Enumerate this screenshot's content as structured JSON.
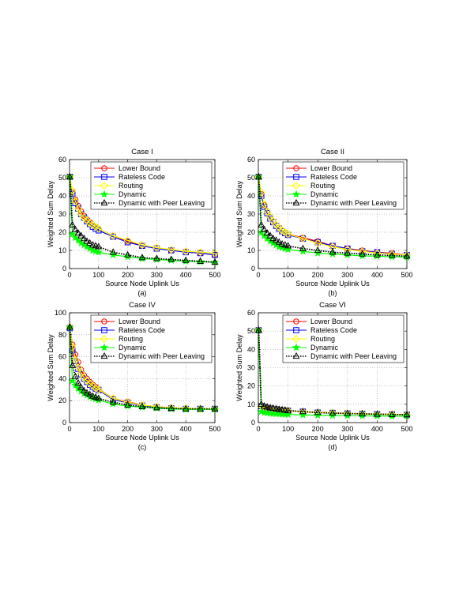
{
  "legend_labels": [
    "Lower Bound",
    "Rateless Code",
    "Routing",
    "Dynamic",
    "Dynamic with Peer Leaving"
  ],
  "series_styles": [
    {
      "color": "#ff0000",
      "marker": "circle"
    },
    {
      "color": "#0000ff",
      "marker": "square"
    },
    {
      "color": "#ffff00",
      "marker": "diamond"
    },
    {
      "color": "#00ff00",
      "marker": "star"
    },
    {
      "color": "#000000",
      "marker": "triangle",
      "line": "dotted"
    }
  ],
  "chart_data": [
    {
      "type": "line",
      "title": "Case I",
      "xlabel": "Source Node Uplink Us",
      "ylabel": "Weighted Sum Delay",
      "caption": "(a)",
      "xlim": [
        0,
        500
      ],
      "ylim": [
        0,
        60
      ],
      "xticks": [
        0,
        100,
        200,
        300,
        400,
        500
      ],
      "yticks": [
        0,
        10,
        20,
        30,
        40,
        50,
        60
      ],
      "grid": true,
      "legend_position": "top-right",
      "series": [
        {
          "name": "Lower Bound",
          "x": [
            1,
            10,
            20,
            30,
            40,
            50,
            60,
            70,
            80,
            90,
            100,
            150,
            200,
            250,
            300,
            350,
            400,
            450,
            500
          ],
          "y": [
            50.5,
            42,
            38,
            34.5,
            31.5,
            29,
            27,
            25.5,
            24,
            23,
            22,
            18,
            15,
            12.5,
            11.5,
            10,
            9.5,
            8.5,
            7.5
          ]
        },
        {
          "name": "Rateless Code",
          "x": [
            1,
            10,
            20,
            30,
            40,
            50,
            60,
            70,
            80,
            90,
            100,
            150,
            200,
            250,
            300,
            350,
            400,
            450,
            500
          ],
          "y": [
            50.5,
            41,
            36,
            33,
            30,
            28,
            26,
            24.5,
            23,
            22,
            21,
            17.5,
            14.5,
            12.5,
            11,
            10,
            9,
            8.5,
            7.5
          ]
        },
        {
          "name": "Routing",
          "x": [
            1,
            10,
            20,
            30,
            40,
            50,
            60,
            70,
            80,
            90,
            100,
            150,
            200,
            250,
            300,
            350,
            400,
            450,
            500
          ],
          "y": [
            50.5,
            43,
            37,
            33,
            30,
            28,
            26.5,
            25,
            24,
            23,
            22,
            18,
            15.5,
            13,
            11.5,
            10.5,
            9.5,
            9,
            8.5
          ]
        },
        {
          "name": "Dynamic",
          "x": [
            1,
            10,
            20,
            30,
            40,
            50,
            60,
            70,
            80,
            90,
            100,
            150,
            200,
            250,
            300,
            350,
            400,
            450,
            500
          ],
          "y": [
            50.5,
            19,
            17,
            15.5,
            14,
            13,
            12,
            11,
            10,
            9.5,
            9,
            7.5,
            6.5,
            5.5,
            5,
            4.5,
            4,
            3.7,
            3.5
          ]
        },
        {
          "name": "Dynamic with Peer Leaving",
          "x": [
            1,
            10,
            20,
            30,
            40,
            50,
            60,
            70,
            80,
            90,
            100,
            150,
            200,
            250,
            300,
            350,
            400,
            450,
            500
          ],
          "y": [
            50.5,
            24,
            21.5,
            19.5,
            18,
            16.5,
            15,
            14,
            13,
            12.5,
            12,
            9,
            7.5,
            6,
            5.5,
            5,
            4.5,
            4,
            3.5
          ]
        }
      ]
    },
    {
      "type": "line",
      "title": "Case II",
      "xlabel": "Source Node Uplink Us",
      "ylabel": "Weighted Sum Delay",
      "caption": "(b)",
      "xlim": [
        0,
        500
      ],
      "ylim": [
        0,
        60
      ],
      "xticks": [
        0,
        100,
        200,
        300,
        400,
        500
      ],
      "yticks": [
        0,
        10,
        20,
        30,
        40,
        50,
        60
      ],
      "grid": true,
      "legend_position": "top-right",
      "series": [
        {
          "name": "Lower Bound",
          "x": [
            1,
            10,
            20,
            30,
            40,
            50,
            60,
            70,
            80,
            90,
            100,
            150,
            200,
            250,
            300,
            350,
            400,
            450,
            500
          ],
          "y": [
            50.5,
            41,
            35,
            31.5,
            28.5,
            26,
            24,
            22.5,
            21,
            20,
            19,
            17,
            15,
            12.5,
            11,
            10,
            9,
            8.5,
            7.5
          ]
        },
        {
          "name": "Rateless Code",
          "x": [
            1,
            10,
            20,
            30,
            40,
            50,
            60,
            70,
            80,
            90,
            100,
            150,
            200,
            250,
            300,
            350,
            400,
            450,
            500
          ],
          "y": [
            50.5,
            40,
            34,
            30.5,
            27.5,
            25.5,
            23.5,
            22,
            20.5,
            19.5,
            18.5,
            16.5,
            14.5,
            12.5,
            11,
            9.5,
            9,
            8,
            7.5
          ]
        },
        {
          "name": "Routing",
          "x": [
            1,
            10,
            20,
            30,
            40,
            50,
            60,
            70,
            80,
            90,
            100,
            150,
            200,
            250,
            300,
            350,
            400,
            450,
            500
          ],
          "y": [
            50.5,
            42,
            35.5,
            31.5,
            28.5,
            26,
            24,
            22.5,
            21,
            20,
            19,
            16.5,
            14,
            12,
            10.5,
            9.5,
            8.5,
            8,
            7.5
          ]
        },
        {
          "name": "Dynamic",
          "x": [
            1,
            10,
            20,
            30,
            40,
            50,
            60,
            70,
            80,
            90,
            100,
            150,
            200,
            250,
            300,
            350,
            400,
            450,
            500
          ],
          "y": [
            50.5,
            20,
            18,
            16.5,
            15,
            14,
            13,
            12,
            11.5,
            11,
            10.5,
            9.5,
            8.5,
            8,
            7.5,
            7,
            6.8,
            6.5,
            6.3
          ]
        },
        {
          "name": "Dynamic with Peer Leaving",
          "x": [
            1,
            10,
            20,
            30,
            40,
            50,
            60,
            70,
            80,
            90,
            100,
            150,
            200,
            250,
            300,
            350,
            400,
            450,
            500
          ],
          "y": [
            50.5,
            24,
            21.5,
            19.5,
            18,
            16.5,
            15.5,
            14.5,
            13.5,
            13,
            12.5,
            11,
            10,
            9,
            8.5,
            8,
            7.5,
            7.2,
            6.8
          ]
        }
      ]
    },
    {
      "type": "line",
      "title": "Case IV",
      "xlabel": "Source Node Uplink Us",
      "ylabel": "Weighted Sum Delay",
      "caption": "(c)",
      "xlim": [
        0,
        500
      ],
      "ylim": [
        0,
        100
      ],
      "xticks": [
        0,
        100,
        200,
        300,
        400,
        500
      ],
      "yticks": [
        0,
        20,
        40,
        60,
        80,
        100
      ],
      "grid": true,
      "legend_position": "top-right",
      "series": [
        {
          "name": "Lower Bound",
          "x": [
            1,
            10,
            20,
            30,
            40,
            50,
            60,
            70,
            80,
            90,
            100,
            150,
            200,
            250,
            300,
            350,
            400,
            450,
            500
          ],
          "y": [
            87,
            71,
            62,
            55,
            48,
            43,
            40,
            37,
            34.5,
            32.5,
            30.5,
            22,
            19,
            16,
            14.5,
            13.5,
            13,
            12.5,
            12.5
          ]
        },
        {
          "name": "Rateless Code",
          "x": [
            1,
            10,
            20,
            30,
            40,
            50,
            60,
            70,
            80,
            90,
            100,
            150,
            200,
            250,
            300,
            350,
            400,
            450,
            500
          ],
          "y": [
            86,
            66,
            56,
            49,
            44,
            40,
            37,
            34.5,
            32.5,
            31,
            29.5,
            21,
            18,
            15.5,
            14,
            13,
            12.5,
            12.5,
            12.5
          ]
        },
        {
          "name": "Routing",
          "x": [
            1,
            10,
            20,
            30,
            40,
            50,
            60,
            70,
            80,
            90,
            100,
            150,
            200,
            250,
            300,
            350,
            400,
            450,
            500
          ],
          "y": [
            87,
            69,
            57,
            50,
            45,
            41,
            38,
            35.5,
            33.5,
            31.5,
            30,
            22,
            18.5,
            16,
            14.5,
            13.5,
            13,
            12.5,
            12.5
          ]
        },
        {
          "name": "Dynamic",
          "x": [
            1,
            10,
            20,
            30,
            40,
            50,
            60,
            70,
            80,
            90,
            100,
            150,
            200,
            250,
            300,
            350,
            400,
            450,
            500
          ],
          "y": [
            87,
            38,
            34,
            31,
            28.5,
            26.5,
            25,
            23.5,
            22.5,
            21.5,
            20.5,
            17,
            15,
            14,
            13,
            12.5,
            12,
            12,
            12
          ]
        },
        {
          "name": "Dynamic with Peer Leaving",
          "x": [
            1,
            10,
            20,
            30,
            40,
            50,
            60,
            70,
            80,
            90,
            100,
            150,
            200,
            250,
            300,
            350,
            400,
            450,
            500
          ],
          "y": [
            87,
            52,
            42,
            36,
            32,
            29,
            27,
            25.5,
            24,
            23,
            22,
            18.5,
            16,
            14.5,
            13.5,
            13,
            12.5,
            12.5,
            12.5
          ]
        }
      ]
    },
    {
      "type": "line",
      "title": "Case VI",
      "xlabel": "Source Node Uplink Us",
      "ylabel": "Weighted Sum Delay",
      "caption": "(d)",
      "xlim": [
        0,
        500
      ],
      "ylim": [
        0,
        60
      ],
      "xticks": [
        0,
        100,
        200,
        300,
        400,
        500
      ],
      "yticks": [
        0,
        10,
        20,
        30,
        40,
        50,
        60
      ],
      "grid": true,
      "legend_position": "top-right",
      "series": [
        {
          "name": "Lower Bound",
          "x": [
            1,
            10,
            20,
            30,
            40,
            50,
            60,
            70,
            80,
            90,
            100,
            150,
            200,
            250,
            300,
            350,
            400,
            450,
            500
          ],
          "y": [
            50.5,
            9,
            8.5,
            8,
            7.8,
            7.5,
            7.3,
            7,
            6.8,
            6.6,
            6.5,
            6,
            5.5,
            5.3,
            5,
            4.8,
            4.6,
            4.5,
            4.3
          ]
        },
        {
          "name": "Rateless Code",
          "x": [
            1,
            10,
            20,
            30,
            40,
            50,
            60,
            70,
            80,
            90,
            100,
            150,
            200,
            250,
            300,
            350,
            400,
            450,
            500
          ],
          "y": [
            50.5,
            9,
            8.5,
            8,
            7.8,
            7.5,
            7.3,
            7,
            6.8,
            6.6,
            6.5,
            6,
            5.5,
            5.3,
            5,
            4.8,
            4.6,
            4.5,
            4.3
          ]
        },
        {
          "name": "Routing",
          "x": [
            1,
            10,
            20,
            30,
            40,
            50,
            60,
            70,
            80,
            90,
            100,
            150,
            200,
            250,
            300,
            350,
            400,
            450,
            500
          ],
          "y": [
            50.5,
            9,
            8.5,
            8,
            7.8,
            7.5,
            7.3,
            7,
            6.8,
            6.6,
            6.5,
            6,
            5.5,
            5.3,
            5,
            4.8,
            4.6,
            4.5,
            4.3
          ]
        },
        {
          "name": "Dynamic",
          "x": [
            1,
            10,
            20,
            30,
            40,
            50,
            60,
            70,
            80,
            90,
            100,
            150,
            200,
            250,
            300,
            350,
            400,
            450,
            500
          ],
          "y": [
            50.5,
            6,
            5.5,
            5.3,
            5,
            4.9,
            4.8,
            4.7,
            4.6,
            4.5,
            4.4,
            4.2,
            4,
            3.9,
            3.8,
            3.7,
            3.6,
            3.5,
            3.5
          ]
        },
        {
          "name": "Dynamic with Peer Leaving",
          "x": [
            1,
            10,
            20,
            30,
            40,
            50,
            60,
            70,
            80,
            90,
            100,
            150,
            200,
            250,
            300,
            350,
            400,
            450,
            500
          ],
          "y": [
            50.5,
            10,
            9,
            8.5,
            8,
            7.8,
            7.5,
            7.2,
            7,
            6.8,
            6.5,
            6,
            5.5,
            5.2,
            5,
            4.8,
            4.6,
            4.4,
            4.3
          ]
        }
      ]
    }
  ]
}
